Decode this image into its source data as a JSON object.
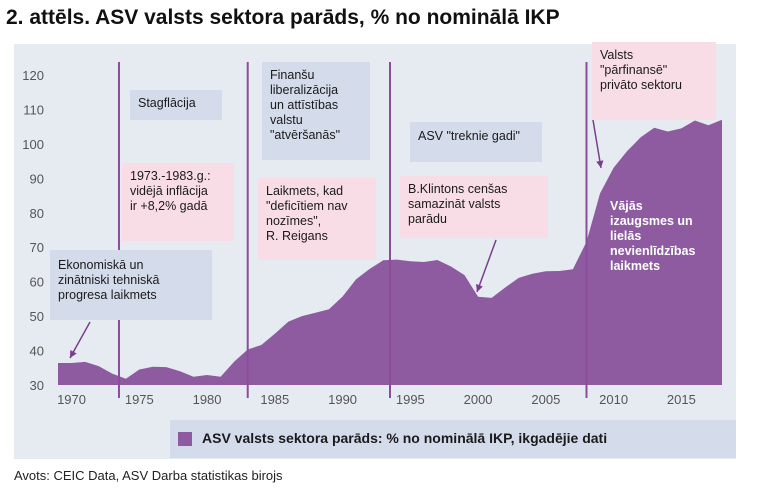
{
  "title": "2. attēls. ASV valsts sektora parāds, % no nominālā IKP",
  "source": "Avots: CEIC Data, ASV Darba statistikas birojs",
  "colors": {
    "area": "#8e5aa0",
    "plot_bg": "#e6ebf2",
    "box_blue": "#d4dceb",
    "box_pink": "#f8dde6",
    "divider": "#8b4d9a"
  },
  "annotations": {
    "stagflacija": "Stagflācija",
    "inflacija": [
      "1973.-1983.g.:",
      "vidējā inflācija",
      "ir +8,2% gadā"
    ],
    "ekonomiska": [
      "Ekonomiskā  un",
      "zinātniski  tehniskā",
      "progresa laikmets"
    ],
    "finansu": [
      "Finanšu",
      "liberalizācija",
      "un attīstības",
      "valstu",
      "\"atvēršanās\""
    ],
    "laikmets": [
      "Laikmets, kad",
      "\"deficītiem nav",
      "nozīmes\",",
      "R. Reigans"
    ],
    "treknie": "ASV \"treknie gadi\"",
    "klintons": [
      "B.Klintons  cenšas",
      "samazināt  valsts",
      "parādu"
    ],
    "parfinanse": [
      "Valsts",
      "\"pārfinansē\"",
      "privāto sektoru"
    ],
    "vajas": [
      "Vājās",
      "izaugsmes  un",
      "lielās",
      "nevienlīdzības",
      "laikmets"
    ]
  },
  "chart_data": {
    "type": "area",
    "title": "2. attēls. ASV valsts sektora parāds, % no nominālā IKP",
    "xlabel": "",
    "ylabel": "",
    "xlim": [
      1969,
      2018
    ],
    "ylim": [
      30,
      120
    ],
    "xticks": [
      1970,
      1975,
      1980,
      1985,
      1990,
      1995,
      2000,
      2005,
      2010,
      2015
    ],
    "yticks": [
      30,
      40,
      50,
      60,
      70,
      80,
      90,
      100,
      110,
      120
    ],
    "grid": false,
    "legend_position": "bottom",
    "series": [
      {
        "name": "ASV valsts sektora parāds: % no nominālā IKP, ikgadējie dati",
        "x": [
          1969,
          1970,
          1971,
          1972,
          1973,
          1974,
          1975,
          1976,
          1977,
          1978,
          1979,
          1980,
          1981,
          1982,
          1983,
          1984,
          1985,
          1986,
          1987,
          1988,
          1989,
          1990,
          1991,
          1992,
          1993,
          1994,
          1995,
          1996,
          1997,
          1998,
          1999,
          2000,
          2001,
          2002,
          2003,
          2004,
          2005,
          2006,
          2007,
          2008,
          2009,
          2010,
          2011,
          2012,
          2013,
          2014,
          2015,
          2016,
          2017,
          2018
        ],
        "values": [
          36.4,
          36.4,
          36.7,
          35.5,
          33.3,
          31.8,
          34.5,
          35.3,
          35.2,
          34.0,
          32.4,
          32.9,
          32.4,
          36.8,
          40.3,
          41.6,
          44.9,
          48.4,
          50.0,
          51.0,
          52.0,
          55.7,
          60.7,
          63.7,
          66.2,
          66.4,
          65.9,
          65.7,
          66.3,
          64.4,
          61.9,
          55.6,
          55.3,
          58.3,
          61.1,
          62.3,
          63.0,
          63.1,
          63.6,
          71.6,
          85.6,
          93.1,
          97.9,
          101.9,
          104.7,
          103.6,
          104.5,
          106.8,
          105.4,
          107.0
        ]
      }
    ],
    "period_dividers": [
      1973.5,
      1983,
      1993.5,
      2008
    ]
  },
  "legend": {
    "label": "ASV valsts sektora parāds: % no nominālā IKP, ikgadējie dati"
  }
}
